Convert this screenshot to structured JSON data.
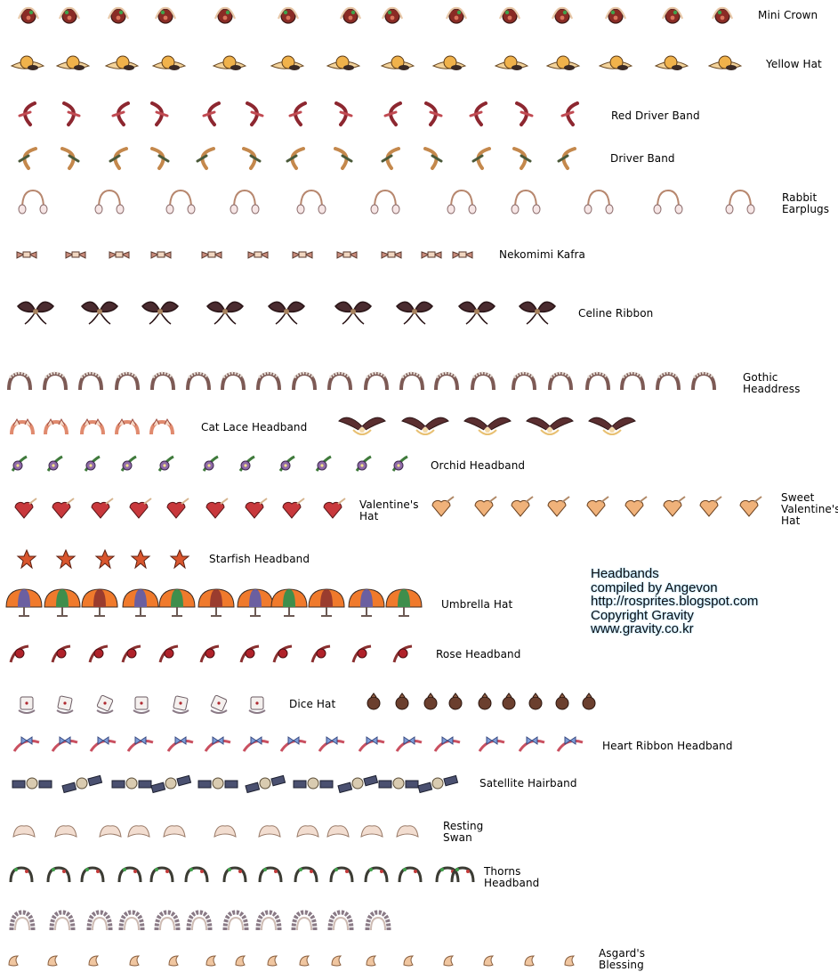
{
  "sheet": {
    "credits": [
      "Headbands",
      "compiled by Angevon",
      "http://rosprites.blogspot.com",
      "Copyright Gravity",
      "www.gravity.co.kr"
    ]
  },
  "rows": [
    {
      "label": "Mini Crown",
      "kind": "mini-crown"
    },
    {
      "label": "Yellow Hat",
      "kind": "yellow-hat"
    },
    {
      "label": "Red Driver Band",
      "kind": "red-driver-band"
    },
    {
      "label": "Driver Band",
      "kind": "driver-band"
    },
    {
      "label": "Rabbit\nEarplugs",
      "kind": "rabbit-earplugs"
    },
    {
      "label": "Nekomimi Kafra",
      "kind": "nekomimi-kafra"
    },
    {
      "label": "Celine Ribbon",
      "kind": "celine-ribbon"
    },
    {
      "label": "Gothic\nHeaddress",
      "kind": "gothic-headdress"
    },
    {
      "label": "Cat Lace Headband",
      "kind": "cat-lace-headband"
    },
    {
      "label": "",
      "kind": "winged-tiara"
    },
    {
      "label": "Orchid Headband",
      "kind": "orchid-headband"
    },
    {
      "label": "Valentine's\nHat",
      "kind": "valentines-hat"
    },
    {
      "label": "Sweet\nValentine's\nHat",
      "kind": "sweet-valentines-hat"
    },
    {
      "label": "Starfish Headband",
      "kind": "starfish-headband"
    },
    {
      "label": "Umbrella Hat",
      "kind": "umbrella-hat"
    },
    {
      "label": "Rose Headband",
      "kind": "rose-headband"
    },
    {
      "label": "Dice Hat",
      "kind": "dice-hat"
    },
    {
      "label": "",
      "kind": "bag-sprites"
    },
    {
      "label": "Heart Ribbon Headband",
      "kind": "heart-ribbon-headband"
    },
    {
      "label": "Satellite Hairband",
      "kind": "satellite-hairband"
    },
    {
      "label": "Resting\nSwan",
      "kind": "resting-swan"
    },
    {
      "label": "Thorns\nHeadband",
      "kind": "thorns-headband"
    },
    {
      "label": "",
      "kind": "gear-tiara"
    },
    {
      "label": "Asgard's\nBlessing",
      "kind": "asgards-blessing"
    }
  ]
}
